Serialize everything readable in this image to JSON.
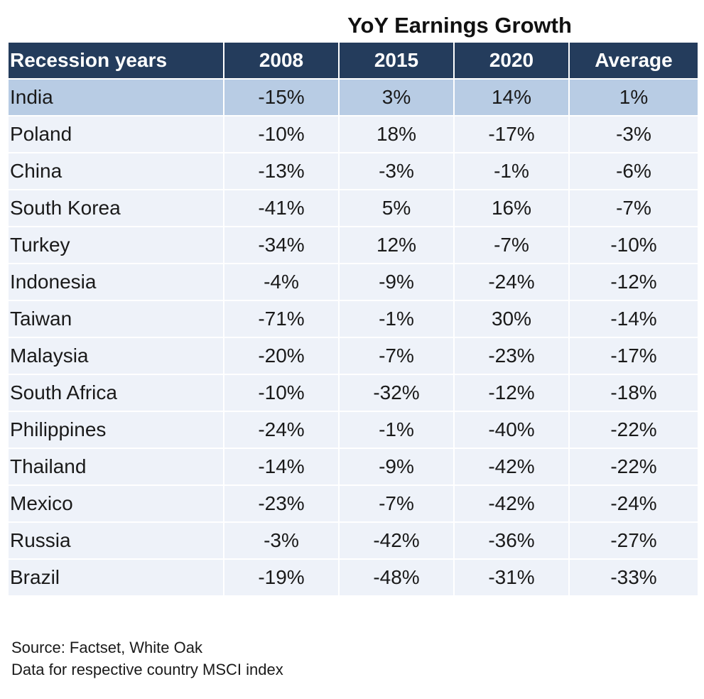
{
  "title": "YoY Earnings Growth",
  "chart_data": {
    "type": "table",
    "title": "YoY Earnings Growth",
    "columns": [
      "Recession years",
      "2008",
      "2015",
      "2020",
      "Average"
    ],
    "rows": [
      [
        "India",
        "-15%",
        "3%",
        "14%",
        "1%"
      ],
      [
        "Poland",
        "-10%",
        "18%",
        "-17%",
        "-3%"
      ],
      [
        "China",
        "-13%",
        "-3%",
        "-1%",
        "-6%"
      ],
      [
        "South Korea",
        "-41%",
        "5%",
        "16%",
        "-7%"
      ],
      [
        "Turkey",
        "-34%",
        "12%",
        "-7%",
        "-10%"
      ],
      [
        "Indonesia",
        "-4%",
        "-9%",
        "-24%",
        "-12%"
      ],
      [
        "Taiwan",
        "-71%",
        "-1%",
        "30%",
        "-14%"
      ],
      [
        "Malaysia",
        "-20%",
        "-7%",
        "-23%",
        "-17%"
      ],
      [
        "South Africa",
        "-10%",
        "-32%",
        "-12%",
        "-18%"
      ],
      [
        "Philippines",
        "-24%",
        "-1%",
        "-40%",
        "-22%"
      ],
      [
        "Thailand",
        "-14%",
        "-9%",
        "-42%",
        "-22%"
      ],
      [
        "Mexico",
        "-23%",
        "-7%",
        "-42%",
        "-24%"
      ],
      [
        "Russia",
        "-3%",
        "-42%",
        "-36%",
        "-27%"
      ],
      [
        "Brazil",
        "-19%",
        "-48%",
        "-31%",
        "-33%"
      ]
    ],
    "highlighted_row": 0
  },
  "colors": {
    "header_bg": "#243c5c",
    "header_text": "#ffffff",
    "highlight_row_bg": "#b8cce4",
    "row_bg": "#eef2f9"
  },
  "notes": {
    "source": "Source: Factset, White Oak",
    "description": "Data for respective country MSCI index"
  }
}
